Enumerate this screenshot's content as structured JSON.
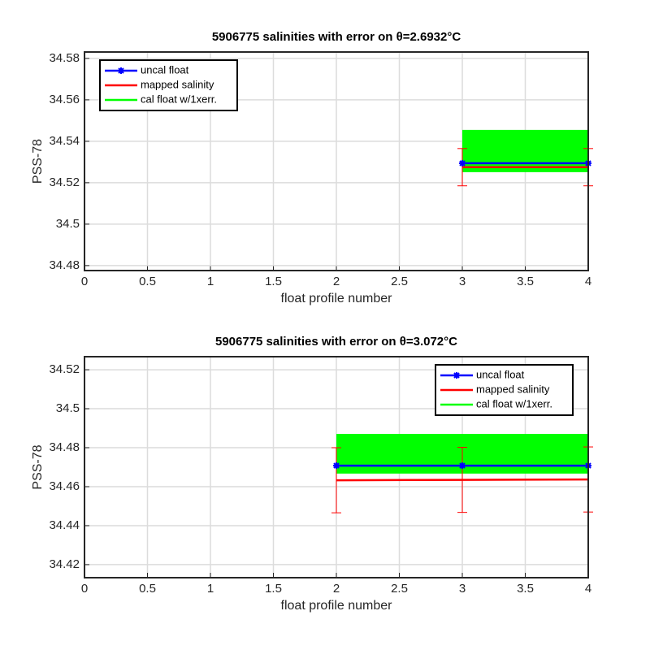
{
  "chart_data": [
    {
      "type": "line",
      "title": "5906775 salinities with error on θ=2.6932°C",
      "xlabel": "float profile number",
      "ylabel": "PSS-78",
      "x": [
        3,
        4
      ],
      "series": [
        {
          "name": "uncal float",
          "color": "#0000ff",
          "values": [
            34.5294,
            34.5294
          ]
        },
        {
          "name": "mapped salinity",
          "color": "#ff0000",
          "values": [
            34.5275,
            34.5275
          ],
          "errors": [
            0.009,
            0.009
          ]
        },
        {
          "name": "cal float w/1xerr.",
          "color": "#00ff00",
          "values": [
            34.5353,
            34.5353
          ],
          "errors": [
            0.0102,
            0.0102
          ]
        }
      ],
      "xlim": [
        0,
        4
      ],
      "xticks": [
        0,
        0.5,
        1,
        1.5,
        2,
        2.5,
        3,
        3.5,
        4
      ],
      "ylim": [
        34.4776,
        34.5831
      ],
      "yticks": [
        34.48,
        34.5,
        34.52,
        34.54,
        34.56,
        34.58
      ],
      "grid": true,
      "legend": "upper left"
    },
    {
      "type": "line",
      "title": "5906775 salinities with error on θ=3.072°C",
      "xlabel": "float profile number",
      "ylabel": "PSS-78",
      "x": [
        2,
        3,
        4
      ],
      "series": [
        {
          "name": "uncal float",
          "color": "#0000ff",
          "values": [
            34.4708,
            34.4708,
            34.4708
          ]
        },
        {
          "name": "mapped salinity",
          "color": "#ff0000",
          "values": [
            34.4633,
            34.4635,
            34.4637
          ],
          "errors": [
            0.0167,
            0.0167,
            0.0167
          ]
        },
        {
          "name": "cal float w/1xerr.",
          "color": "#00ff00",
          "values": [
            34.4769,
            34.4769,
            34.4769
          ],
          "errors": [
            0.0102,
            0.0102,
            0.0102
          ]
        }
      ],
      "xlim": [
        0,
        4
      ],
      "xticks": [
        0,
        0.5,
        1,
        1.5,
        2,
        2.5,
        3,
        3.5,
        4
      ],
      "ylim": [
        34.4133,
        34.5267
      ],
      "yticks": [
        34.42,
        34.44,
        34.46,
        34.48,
        34.5,
        34.52
      ],
      "grid": true,
      "legend": "upper right"
    }
  ]
}
